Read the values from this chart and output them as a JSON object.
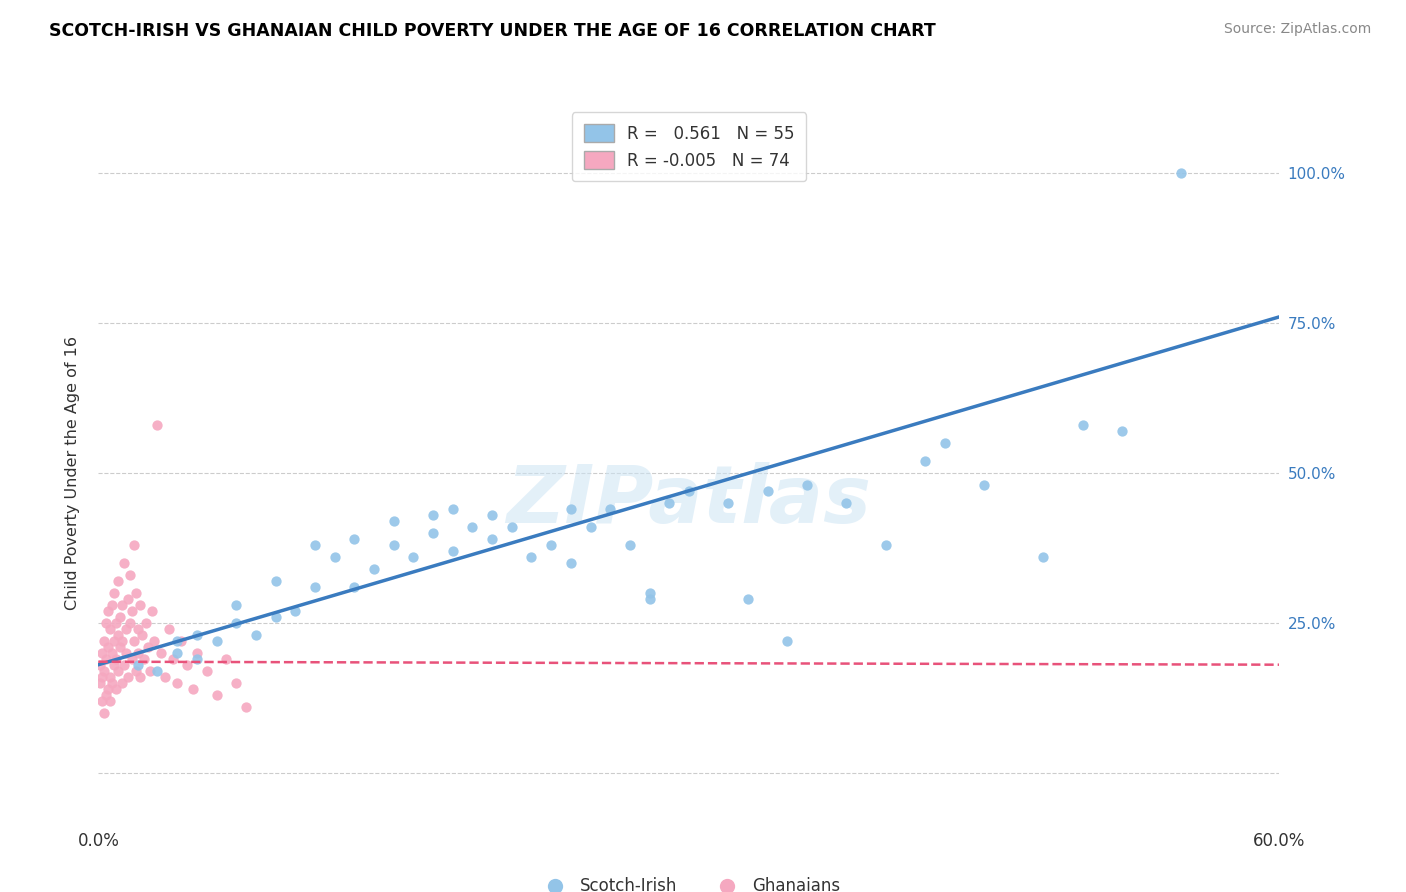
{
  "title": "SCOTCH-IRISH VS GHANAIAN CHILD POVERTY UNDER THE AGE OF 16 CORRELATION CHART",
  "source": "Source: ZipAtlas.com",
  "ylabel": "Child Poverty Under the Age of 16",
  "legend_blue_r": "0.561",
  "legend_blue_n": "55",
  "legend_pink_r": "-0.005",
  "legend_pink_n": "74",
  "blue_color": "#93c4e8",
  "pink_color": "#f5a8c0",
  "blue_line_color": "#3a7bbf",
  "pink_line_color": "#e8527a",
  "watermark": "ZIPatlas",
  "xlim": [
    0.0,
    0.6
  ],
  "ylim": [
    -0.08,
    1.08
  ],
  "ytick_values": [
    0.0,
    0.25,
    0.5,
    0.75,
    1.0
  ],
  "ytick_labels": [
    "",
    "25.0%",
    "50.0%",
    "75.0%",
    "100.0%"
  ],
  "blue_trend_x": [
    0.0,
    0.6
  ],
  "blue_trend_y": [
    0.18,
    0.76
  ],
  "pink_trend_x": [
    0.0,
    0.6
  ],
  "pink_trend_y": [
    0.185,
    0.18
  ],
  "scotch_irish_x": [
    0.02,
    0.03,
    0.04,
    0.04,
    0.05,
    0.05,
    0.06,
    0.07,
    0.07,
    0.08,
    0.09,
    0.09,
    0.1,
    0.11,
    0.11,
    0.12,
    0.13,
    0.13,
    0.14,
    0.15,
    0.15,
    0.16,
    0.17,
    0.17,
    0.18,
    0.18,
    0.19,
    0.2,
    0.2,
    0.21,
    0.22,
    0.23,
    0.24,
    0.24,
    0.25,
    0.26,
    0.27,
    0.28,
    0.29,
    0.3,
    0.32,
    0.34,
    0.36,
    0.38,
    0.4,
    0.42,
    0.45,
    0.48,
    0.5,
    0.52,
    0.28,
    0.33,
    0.35,
    0.43,
    0.55
  ],
  "scotch_irish_y": [
    0.18,
    0.17,
    0.2,
    0.22,
    0.19,
    0.23,
    0.22,
    0.25,
    0.28,
    0.23,
    0.26,
    0.32,
    0.27,
    0.31,
    0.38,
    0.36,
    0.31,
    0.39,
    0.34,
    0.38,
    0.42,
    0.36,
    0.4,
    0.43,
    0.37,
    0.44,
    0.41,
    0.39,
    0.43,
    0.41,
    0.36,
    0.38,
    0.35,
    0.44,
    0.41,
    0.44,
    0.38,
    0.29,
    0.45,
    0.47,
    0.45,
    0.47,
    0.48,
    0.45,
    0.38,
    0.52,
    0.48,
    0.36,
    0.58,
    0.57,
    0.3,
    0.29,
    0.22,
    0.55,
    1.0
  ],
  "ghanaian_x": [
    0.001,
    0.001,
    0.002,
    0.002,
    0.002,
    0.003,
    0.003,
    0.003,
    0.004,
    0.004,
    0.004,
    0.005,
    0.005,
    0.005,
    0.006,
    0.006,
    0.006,
    0.007,
    0.007,
    0.007,
    0.008,
    0.008,
    0.008,
    0.009,
    0.009,
    0.009,
    0.01,
    0.01,
    0.01,
    0.011,
    0.011,
    0.012,
    0.012,
    0.012,
    0.013,
    0.013,
    0.014,
    0.014,
    0.015,
    0.015,
    0.016,
    0.016,
    0.017,
    0.017,
    0.018,
    0.018,
    0.019,
    0.019,
    0.02,
    0.02,
    0.021,
    0.021,
    0.022,
    0.023,
    0.024,
    0.025,
    0.026,
    0.027,
    0.028,
    0.03,
    0.032,
    0.034,
    0.036,
    0.038,
    0.04,
    0.042,
    0.045,
    0.048,
    0.05,
    0.055,
    0.06,
    0.065,
    0.07,
    0.075
  ],
  "ghanaian_y": [
    0.15,
    0.18,
    0.12,
    0.2,
    0.16,
    0.1,
    0.22,
    0.17,
    0.13,
    0.25,
    0.19,
    0.14,
    0.21,
    0.27,
    0.16,
    0.24,
    0.12,
    0.2,
    0.28,
    0.15,
    0.22,
    0.18,
    0.3,
    0.14,
    0.25,
    0.19,
    0.23,
    0.17,
    0.32,
    0.21,
    0.26,
    0.15,
    0.28,
    0.22,
    0.18,
    0.35,
    0.24,
    0.2,
    0.29,
    0.16,
    0.25,
    0.33,
    0.19,
    0.27,
    0.22,
    0.38,
    0.17,
    0.3,
    0.24,
    0.2,
    0.16,
    0.28,
    0.23,
    0.19,
    0.25,
    0.21,
    0.17,
    0.27,
    0.22,
    0.58,
    0.2,
    0.16,
    0.24,
    0.19,
    0.15,
    0.22,
    0.18,
    0.14,
    0.2,
    0.17,
    0.13,
    0.19,
    0.15,
    0.11
  ]
}
